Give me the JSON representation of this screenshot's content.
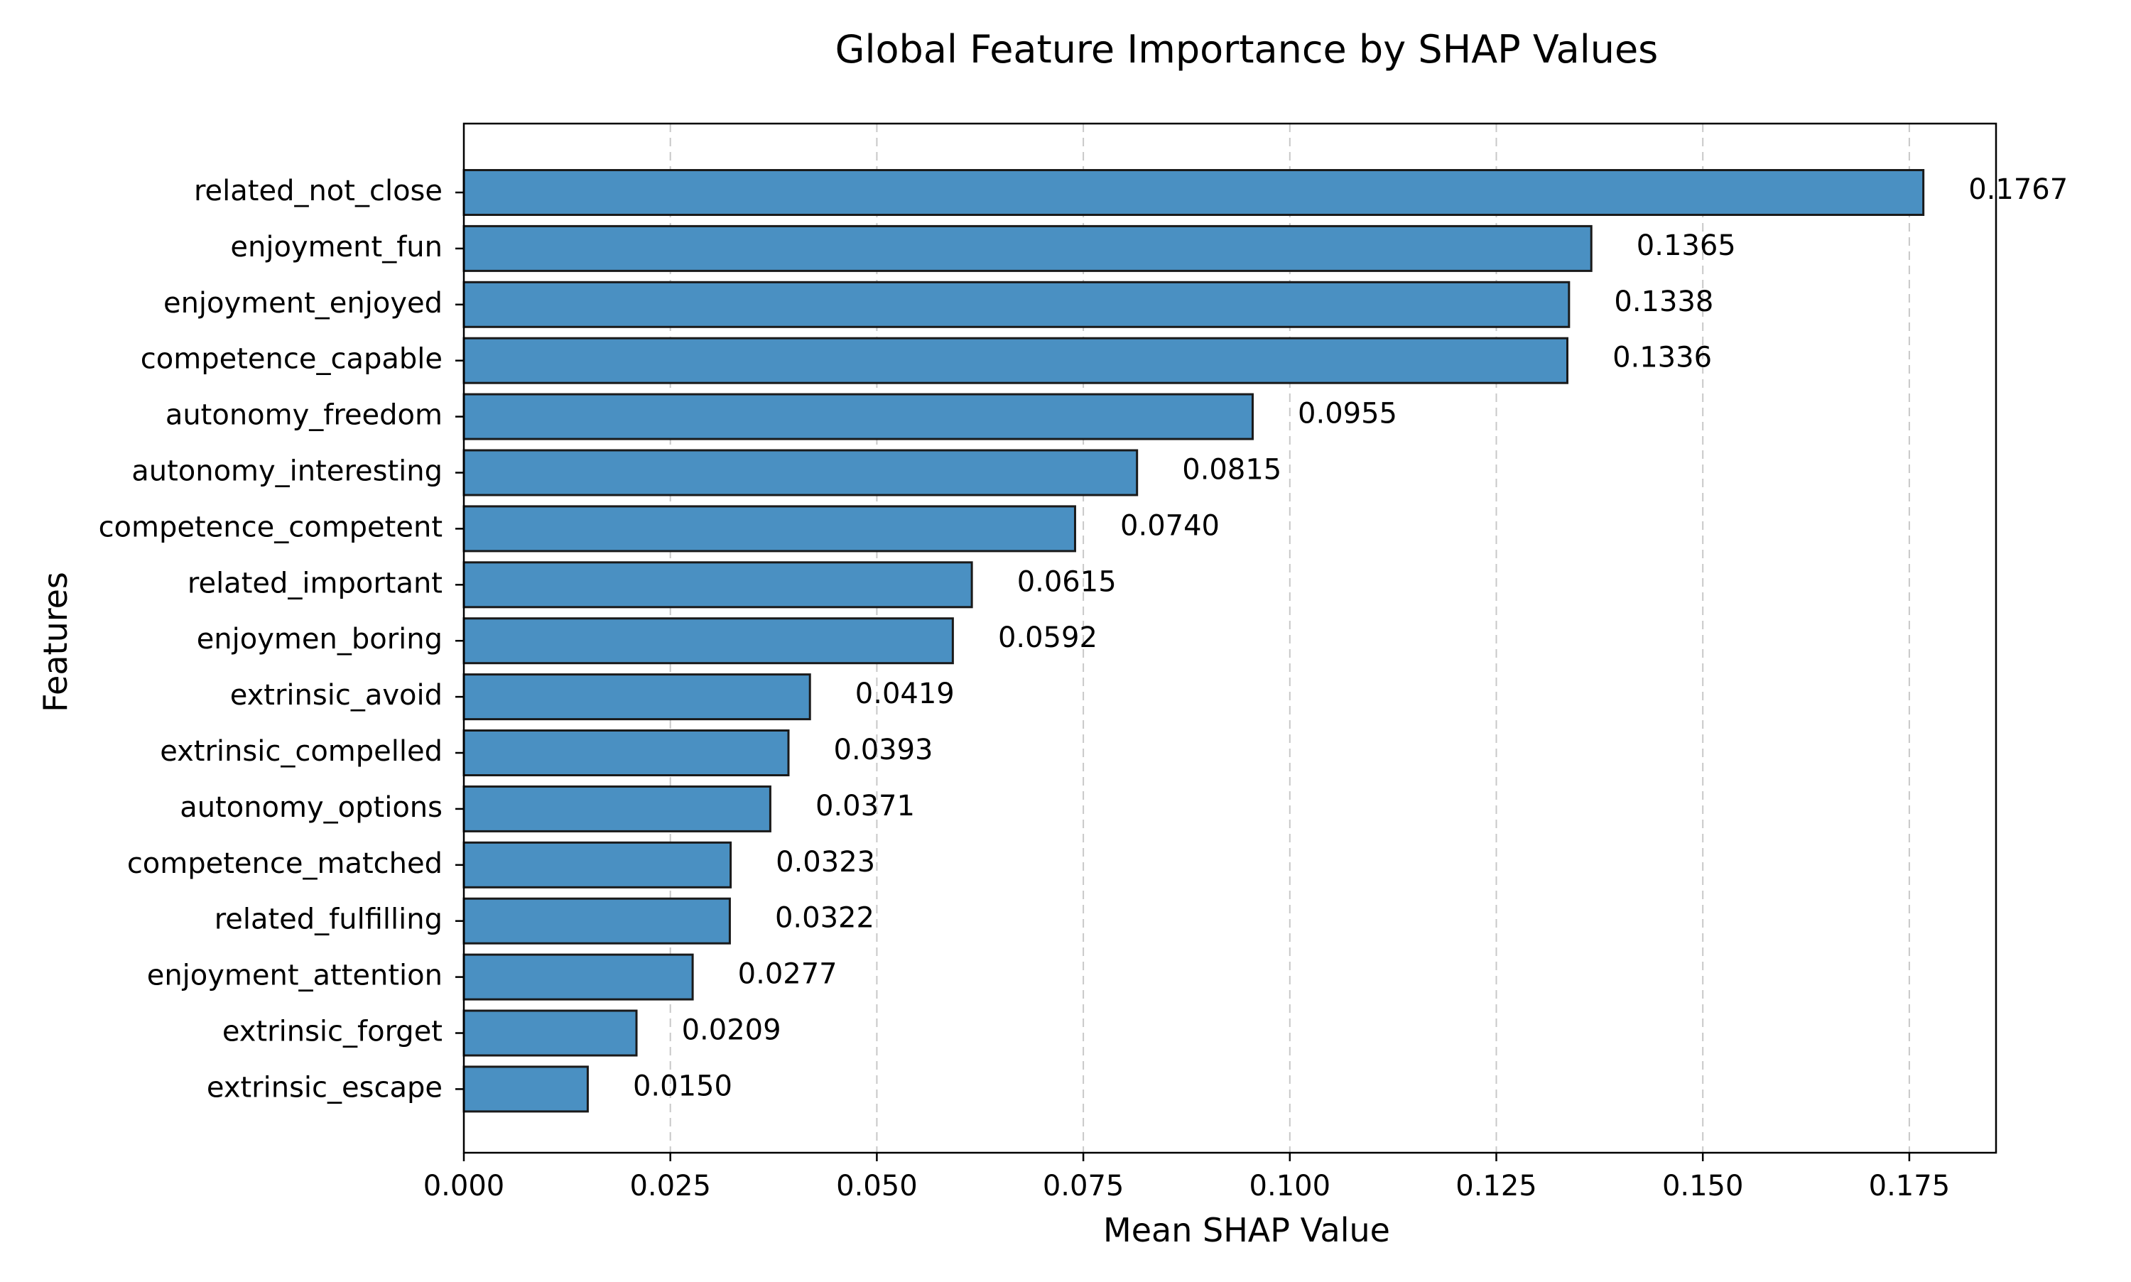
{
  "chart_data": {
    "type": "bar",
    "orientation": "horizontal",
    "title": "Global Feature Importance by SHAP Values",
    "xlabel": "Mean SHAP Value",
    "ylabel": "Features",
    "xlim": [
      0,
      0.1855
    ],
    "xticks": [
      "0.000",
      "0.025",
      "0.050",
      "0.075",
      "0.100",
      "0.125",
      "0.150",
      "0.175"
    ],
    "x_grid": true,
    "grid_style": "dashed",
    "bar_color": "#4a90c2",
    "bar_edge_color": "#1a1a1a",
    "categories": [
      "related_not_close",
      "enjoyment_fun",
      "enjoyment_enjoyed",
      "competence_capable",
      "autonomy_freedom",
      "autonomy_interesting",
      "competence_competent",
      "related_important",
      "enjoymen_boring",
      "extrinsic_avoid",
      "extrinsic_compelled",
      "autonomy_options",
      "competence_matched",
      "related_fulfilling",
      "enjoyment_attention",
      "extrinsic_forget",
      "extrinsic_escape"
    ],
    "values": [
      0.1767,
      0.1365,
      0.1338,
      0.1336,
      0.0955,
      0.0815,
      0.074,
      0.0615,
      0.0592,
      0.0419,
      0.0393,
      0.0371,
      0.0323,
      0.0322,
      0.0277,
      0.0209,
      0.015
    ],
    "value_labels": [
      "0.1767",
      "0.1365",
      "0.1338",
      "0.1336",
      "0.0955",
      "0.0815",
      "0.0740",
      "0.0615",
      "0.0592",
      "0.0419",
      "0.0393",
      "0.0371",
      "0.0323",
      "0.0322",
      "0.0277",
      "0.0209",
      "0.0150"
    ]
  }
}
